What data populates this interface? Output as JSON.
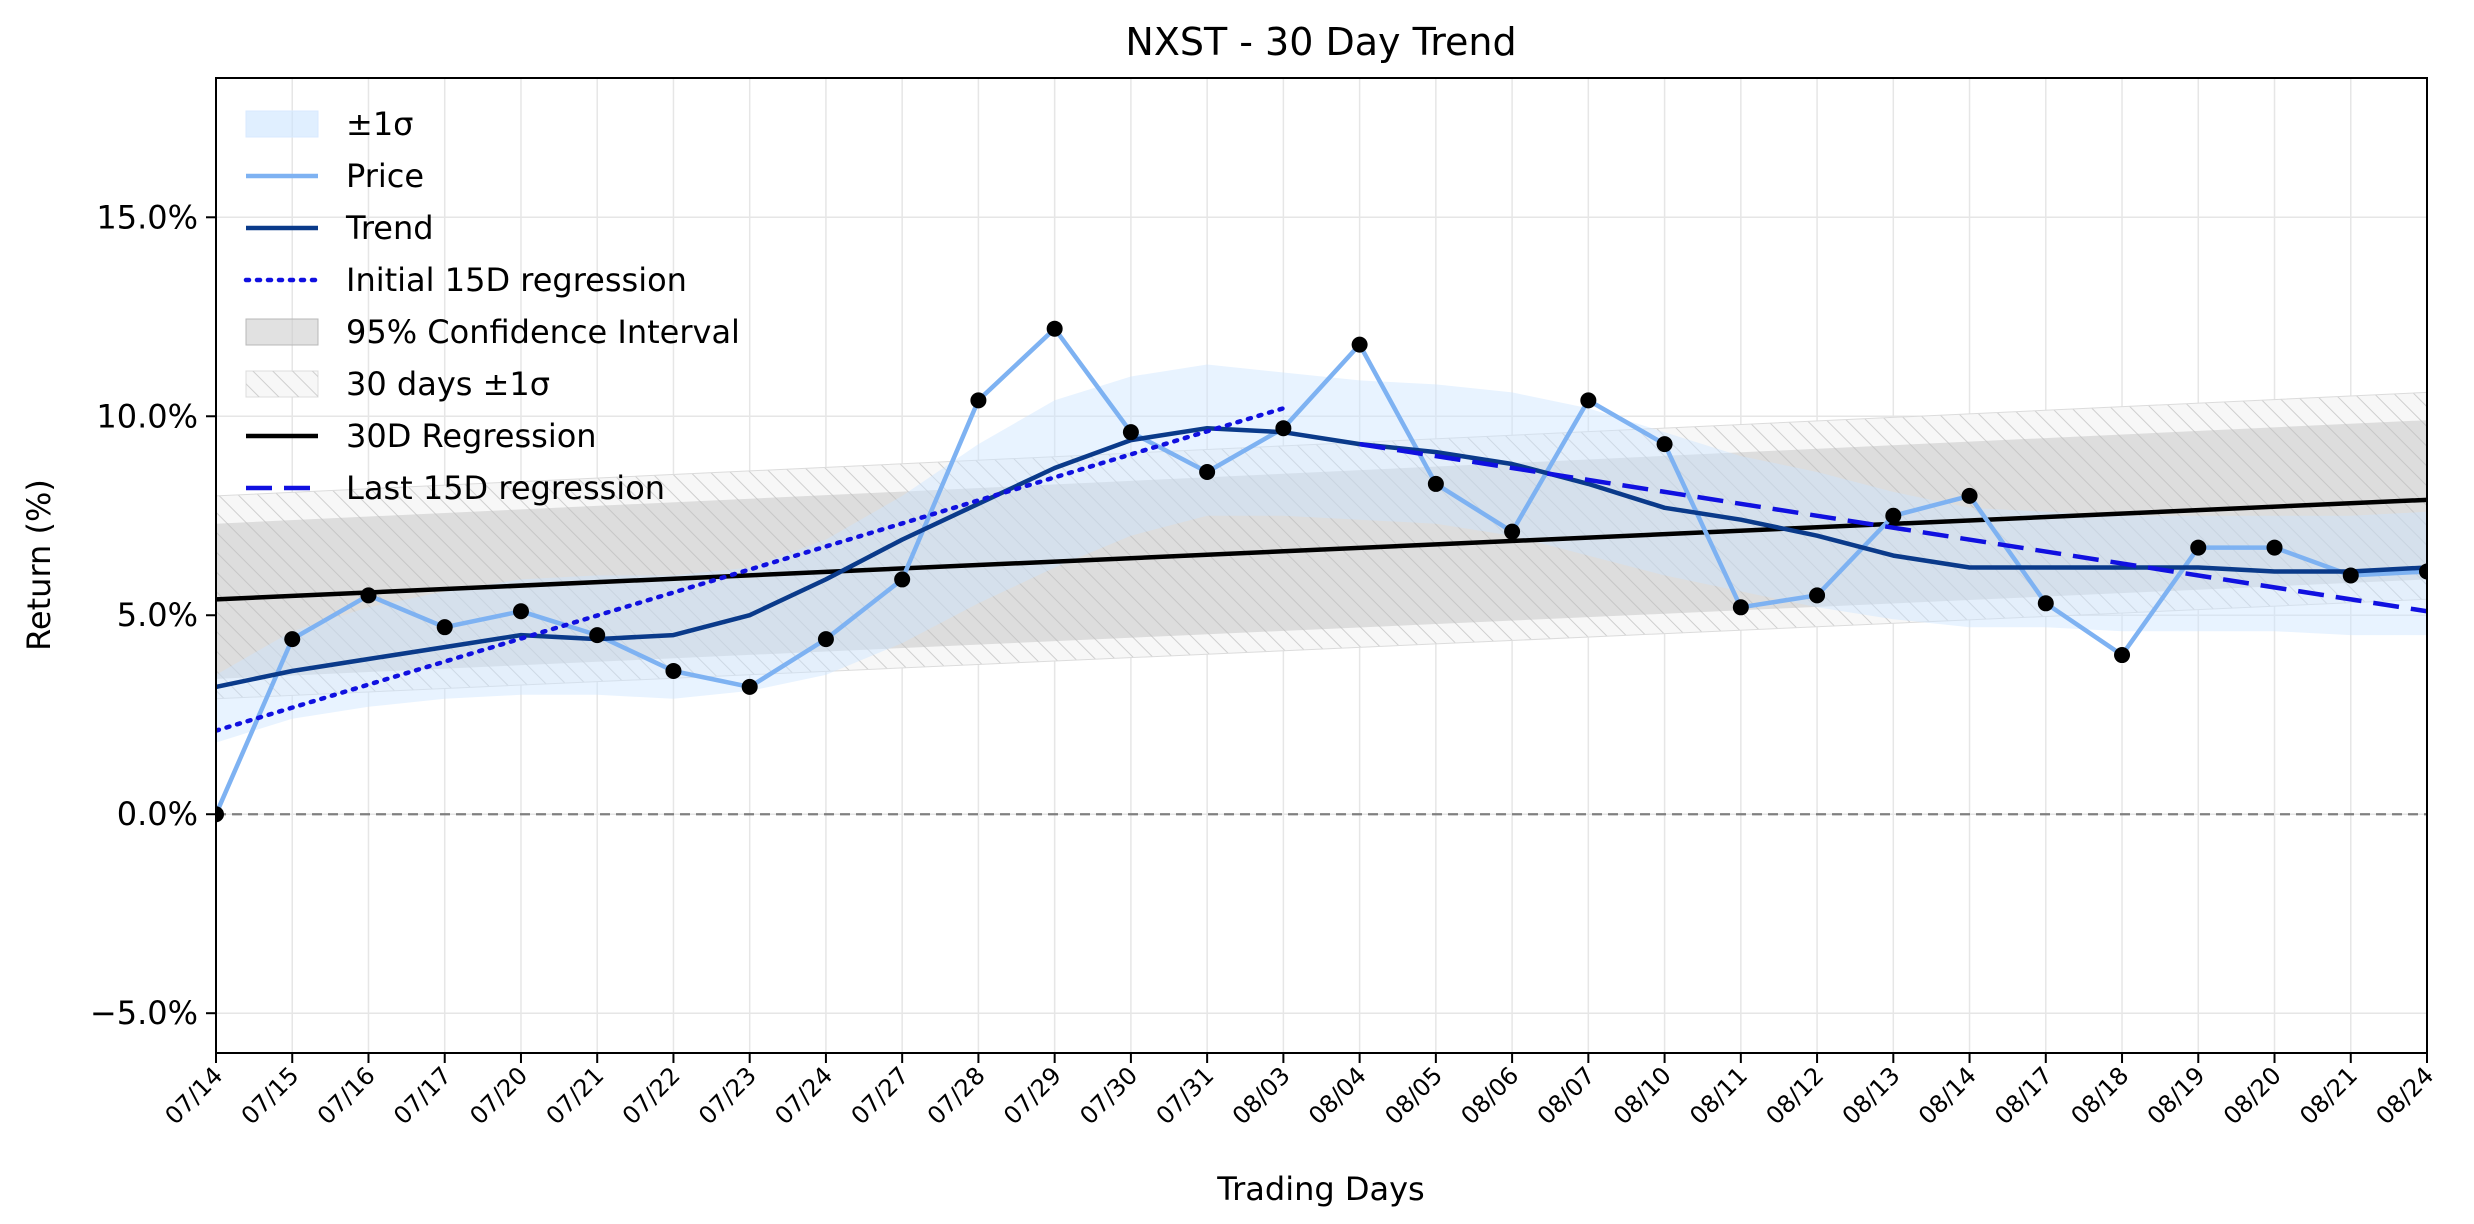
{
  "chart_data": {
    "type": "line",
    "title": "NXST - 30 Day Trend",
    "xlabel": "Trading Days",
    "ylabel": "Return (%)",
    "ylim": [
      -6.0,
      18.5
    ],
    "yticks": [
      -5.0,
      0.0,
      5.0,
      10.0,
      15.0
    ],
    "ytick_labels": [
      "−5.0%",
      "0.0%",
      "5.0%",
      "10.0%",
      "15.0%"
    ],
    "grid": true,
    "legend_position": "top-left",
    "categories": [
      "07/14",
      "07/15",
      "07/16",
      "07/17",
      "07/20",
      "07/21",
      "07/22",
      "07/23",
      "07/24",
      "07/27",
      "07/28",
      "07/29",
      "07/30",
      "07/31",
      "08/03",
      "08/04",
      "08/05",
      "08/06",
      "08/07",
      "08/10",
      "08/11",
      "08/12",
      "08/13",
      "08/14",
      "08/17",
      "08/18",
      "08/19",
      "08/20",
      "08/21",
      "08/24"
    ],
    "legend": [
      {
        "label": "±1σ",
        "kind": "band",
        "color": "#cce4ff"
      },
      {
        "label": "Price",
        "kind": "line",
        "color": "#7eb2f2"
      },
      {
        "label": "Trend",
        "kind": "line",
        "color": "#0a3a8a"
      },
      {
        "label": "Initial 15D regression",
        "kind": "dotted",
        "color": "#1010e0"
      },
      {
        "label": "95% Confidence Interval",
        "kind": "band",
        "color": "#c8c8c8"
      },
      {
        "label": "30 days ±1σ",
        "kind": "hatch",
        "color": "#d9d9d9"
      },
      {
        "label": "30D Regression",
        "kind": "line",
        "color": "#000000"
      },
      {
        "label": "Last 15D regression",
        "kind": "dashed",
        "color": "#1010e0"
      }
    ],
    "series": [
      {
        "name": "Price",
        "values": [
          0.0,
          4.4,
          5.5,
          4.7,
          5.1,
          4.5,
          3.6,
          3.2,
          4.4,
          5.9,
          10.4,
          12.2,
          9.6,
          8.6,
          9.7,
          11.8,
          8.3,
          7.1,
          10.4,
          9.3,
          5.2,
          5.5,
          7.5,
          8.0,
          5.3,
          4.0,
          6.7,
          6.7,
          6.0,
          6.1
        ]
      },
      {
        "name": "Trend",
        "values": [
          3.2,
          3.6,
          3.9,
          4.2,
          4.5,
          4.4,
          4.5,
          5.0,
          5.9,
          6.9,
          7.8,
          8.7,
          9.4,
          9.7,
          9.6,
          9.3,
          9.1,
          8.8,
          8.3,
          7.7,
          7.4,
          7.0,
          6.5,
          6.2,
          6.2,
          6.2,
          6.2,
          6.1,
          6.1,
          6.2
        ]
      },
      {
        "name": "±1σ upper",
        "values": [
          3.5,
          4.6,
          5.2,
          5.6,
          5.9,
          6.0,
          6.0,
          6.2,
          6.9,
          8.0,
          9.3,
          10.4,
          11.0,
          11.3,
          11.1,
          10.9,
          10.8,
          10.6,
          10.2,
          9.6,
          9.0,
          8.6,
          8.1,
          7.7,
          7.6,
          7.5,
          7.5,
          7.5,
          7.5,
          7.6
        ]
      },
      {
        "name": "±1σ lower",
        "values": [
          1.8,
          2.4,
          2.7,
          2.9,
          3.0,
          3.0,
          2.9,
          3.1,
          3.5,
          4.3,
          5.3,
          6.2,
          7.0,
          7.5,
          7.5,
          7.4,
          7.3,
          7.0,
          6.5,
          6.0,
          5.6,
          5.2,
          4.9,
          4.7,
          4.7,
          4.6,
          4.6,
          4.6,
          4.5,
          4.5
        ]
      }
    ],
    "initial_15d_regression": {
      "x_range": [
        0,
        14
      ],
      "y_range": [
        2.1,
        10.2
      ]
    },
    "last_15d_regression": {
      "x_range": [
        15,
        29
      ],
      "y_range": [
        9.3,
        5.1
      ]
    },
    "regression_30d": {
      "values": [
        5.4,
        7.9
      ],
      "ci95_lower": [
        3.4,
        5.9
      ],
      "ci95_upper": [
        7.3,
        9.9
      ],
      "sigma_lower": [
        2.9,
        5.4
      ],
      "sigma_upper": [
        8.0,
        10.6
      ]
    },
    "zero_line": 0.0
  }
}
